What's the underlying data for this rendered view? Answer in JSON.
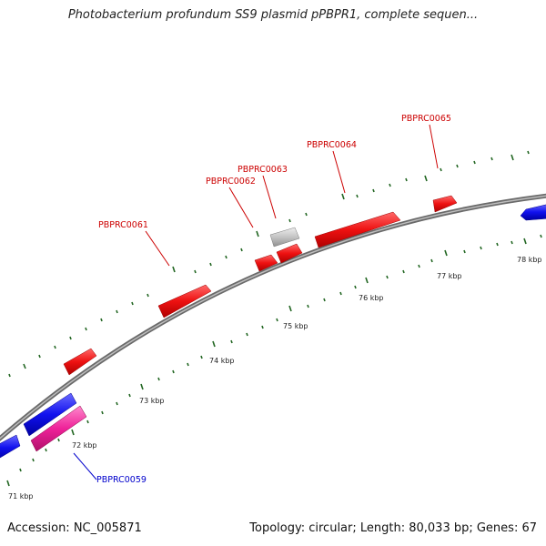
{
  "title": "Photobacterium profundum SS9 plasmid pPBPR1, complete sequen...",
  "footer": {
    "accession": "Accession: NC_005871",
    "summary": "Topology: circular; Length: 80,033 bp; Genes: 67"
  },
  "scale_labels": [
    "71 kbp",
    "72 kbp",
    "73 kbp",
    "74 kbp",
    "75 kbp",
    "76 kbp",
    "77 kbp",
    "78 kbp"
  ],
  "gene_labels": [
    {
      "name": "PBPRC0059",
      "color": "#0000cc"
    },
    {
      "name": "PBPRC0061",
      "color": "#cc0000"
    },
    {
      "name": "PBPRC0062",
      "color": "#cc0000"
    },
    {
      "name": "PBPRC0063",
      "color": "#cc0000"
    },
    {
      "name": "PBPRC0064",
      "color": "#cc0000"
    },
    {
      "name": "PBPRC0065",
      "color": "#cc0000"
    }
  ],
  "colors": {
    "forward_gene": "#ee1111",
    "reverse_gene": "#1111ee",
    "pink_gene": "#ee2299",
    "gray_gene": "#bbbbbb",
    "backbone": "#888888",
    "tick": "#226622"
  }
}
